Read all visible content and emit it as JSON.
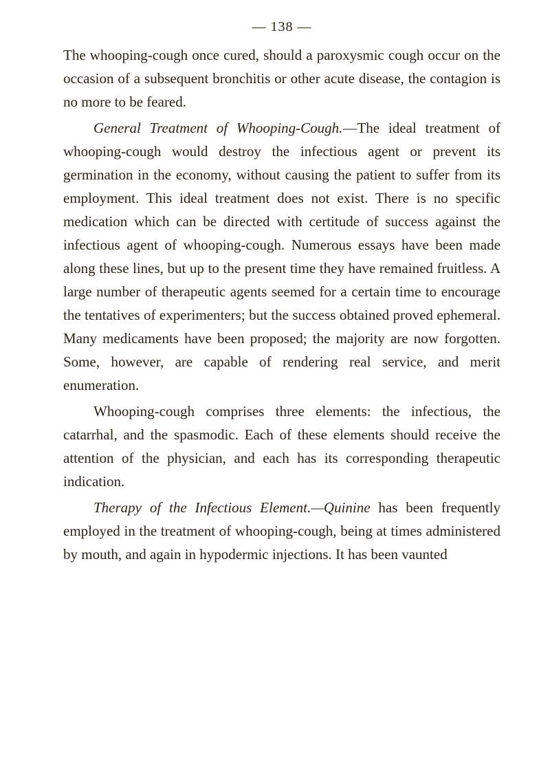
{
  "page_number": "— 138 —",
  "p1": "The whooping-cough once cured, should a paroxys­mic cough occur on the occasion of a subsequent bronchitis or other acute disease, the contagion is no more to be feared.",
  "p2_italic": "General Treatment of Whooping-Cough.",
  "p2_rest": "—The ideal treatment of whooping-cough would destroy the infec­tious agent or prevent its germination in the economy, without causing the patient to suffer from its employ­ment. This ideal treatment does not exist. There is no specific medication which can be directed with cer­titude of success against the infectious agent of whoop­ing-cough. Numerous essays have been made along these lines, but up to the present time they have re­mained fruitless. A large number of therapeutic agents seemed for a certain time to encourage the tentatives of experimenters; but the success obtained proved ephemeral. Many medicaments have been proposed; the majority are now forgotten. Some, however, are capable of rendering real service, and merit enumeration.",
  "p3": "Whooping-cough comprises three elements: the infectious, the catarrhal, and the spasmodic. Each of these elements should receive the attention of the physician, and each has its corresponding therapeutic indication.",
  "p4_italic": "Therapy of the Infectious Element.—Quinine",
  "p4_rest": " has been frequently employed in the treatment of whoop­ing-cough, being at times administered by mouth, and again in hypodermic injections. It has been vaunted"
}
